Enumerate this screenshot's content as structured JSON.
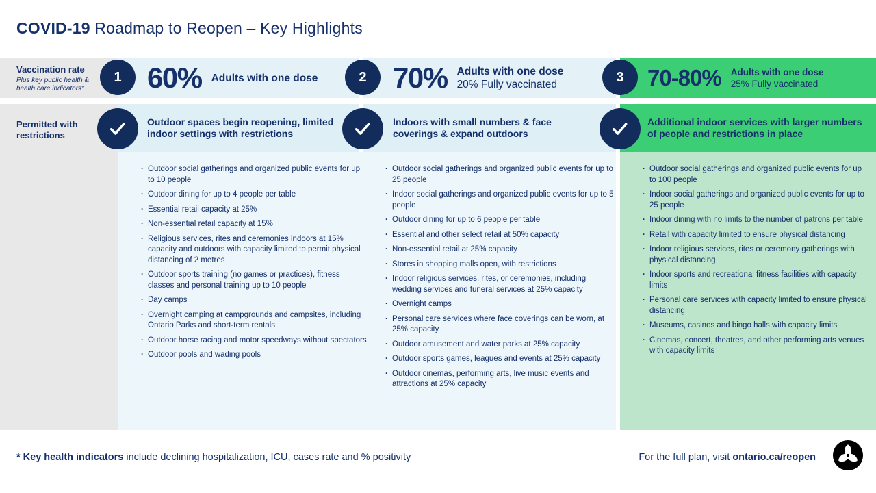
{
  "title": {
    "bold": "COVID-19",
    "rest": " Roadmap to Reopen – Key Highlights"
  },
  "sidebar": {
    "vaccination_label": "Vaccination rate",
    "vaccination_sub": "Plus key public health & health care indicators*",
    "permitted_label": "Permitted with restrictions"
  },
  "steps": [
    {
      "number": "1",
      "percent": "60%",
      "dose_line1": "Adults with one dose",
      "dose_line2": "",
      "header": "Outdoor spaces begin reopening, limited indoor settings with restrictions",
      "bullets": [
        "Outdoor social gatherings and organized public events for up to 10 people",
        "Outdoor dining for up to 4 people per table",
        "Essential retail capacity at 25%",
        "Non-essential retail capacity at 15%",
        "Religious services, rites and ceremonies indoors at 15% capacity and outdoors with capacity limited to permit physical distancing of 2 metres",
        "Outdoor sports training (no games or practices), fitness classes and personal training up to 10 people",
        "Day camps",
        "Overnight camping at campgrounds and campsites, including Ontario Parks and short-term rentals",
        "Outdoor horse racing and motor speedways without spectators",
        "Outdoor pools and wading pools"
      ]
    },
    {
      "number": "2",
      "percent": "70%",
      "dose_line1": "Adults with one dose",
      "dose_line2": "20% Fully vaccinated",
      "header": "Indoors with small numbers & face coverings & expand outdoors",
      "bullets": [
        "Outdoor social gatherings and organized public events for up to 25 people",
        "Indoor social gatherings and organized public events for up to 5 people",
        "Outdoor dining for up to 6 people per table",
        "Essential and other select retail at 50% capacity",
        "Non-essential retail at 25% capacity",
        "Stores in shopping malls open, with restrictions",
        "Indoor religious services, rites, or ceremonies, including wedding services and funeral services at 25% capacity",
        "Overnight camps",
        "Personal care services where face coverings can be worn, at 25% capacity",
        "Outdoor amusement and water parks at 25% capacity",
        "Outdoor sports games, leagues and events at 25% capacity",
        "Outdoor cinemas, performing arts, live music events and attractions at 25% capacity"
      ]
    },
    {
      "number": "3",
      "percent": "70-80%",
      "dose_line1": "Adults with one dose",
      "dose_line2": "25% Fully vaccinated",
      "header": "Additional indoor services with larger numbers of people and restrictions in place",
      "bullets": [
        "Outdoor social gatherings and organized public events for up to 100 people",
        "Indoor social gatherings and organized public events for up to 25 people",
        "Indoor dining with no limits to the number of patrons per table",
        "Retail with capacity limited to ensure physical distancing",
        "Indoor religious services, rites or ceremony gatherings with physical distancing",
        "Indoor sports and recreational fitness facilities with capacity limits",
        "Personal care services with capacity limited to ensure physical distancing",
        "Museums, casinos and bingo halls with capacity limits",
        "Cinemas, concert, theatres, and other performing arts venues with capacity limits"
      ]
    }
  ],
  "footer": {
    "note_bold": "* Key health indicators",
    "note_rest": " include declining hospitalization, ICU, cases rate and % positivity",
    "plan_prefix": "For the full plan, visit ",
    "plan_link": "ontario.ca/reopen",
    "logo": "ontario-trillium-logo"
  },
  "colors": {
    "navy_text": "#15306B",
    "circle_navy": "#122C5C",
    "vaccination_band_blue": "#E4F2F8",
    "permitted_band_blue": "#DEEFF6",
    "body_blue": "#EDF6FA",
    "step3_green": "#3CCE75",
    "body_green": "#BCE5CC",
    "sidebar_grey": "#E9E8E8",
    "logo_black": "#000000"
  }
}
